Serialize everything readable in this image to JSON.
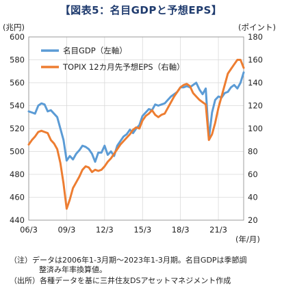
{
  "title": "【図表5：名目GDPと予想EPS】",
  "chart_data": {
    "type": "line",
    "left_unit": "(兆円)",
    "right_unit": "(ポイント)",
    "x_unit": "(年/月)",
    "x_ticks": [
      "06/3",
      "09/3",
      "12/3",
      "15/3",
      "18/3",
      "21/3"
    ],
    "x_tick_values": [
      2006.0,
      2009.0,
      2012.0,
      2015.0,
      2018.0,
      2021.0
    ],
    "xlim": [
      2006.0,
      2023.0
    ],
    "left_axis": {
      "min": 440,
      "max": 600,
      "ticks": [
        440,
        460,
        480,
        500,
        520,
        540,
        560,
        580,
        600
      ]
    },
    "right_axis": {
      "min": 20,
      "max": 180,
      "ticks": [
        20,
        40,
        60,
        80,
        100,
        120,
        140,
        160,
        180
      ]
    },
    "grid": true,
    "legend_position": "top-left",
    "series": [
      {
        "name": "名目GDP（左軸）",
        "axis": "left",
        "color": "#5b9bd5",
        "x": [
          2006.0,
          2006.25,
          2006.5,
          2006.75,
          2007.0,
          2007.25,
          2007.5,
          2007.75,
          2008.0,
          2008.25,
          2008.5,
          2008.75,
          2009.0,
          2009.25,
          2009.5,
          2009.75,
          2010.0,
          2010.25,
          2010.5,
          2010.75,
          2011.0,
          2011.25,
          2011.5,
          2011.75,
          2012.0,
          2012.25,
          2012.5,
          2012.75,
          2013.0,
          2013.25,
          2013.5,
          2013.75,
          2014.0,
          2014.25,
          2014.5,
          2014.75,
          2015.0,
          2015.25,
          2015.5,
          2015.75,
          2016.0,
          2016.25,
          2016.5,
          2016.75,
          2017.0,
          2017.25,
          2017.5,
          2017.75,
          2018.0,
          2018.25,
          2018.5,
          2018.75,
          2019.0,
          2019.25,
          2019.5,
          2019.75,
          2020.0,
          2020.25,
          2020.5,
          2020.75,
          2021.0,
          2021.25,
          2021.5,
          2021.75,
          2022.0,
          2022.25,
          2022.5,
          2022.75,
          2023.0
        ],
        "values": [
          535,
          534,
          533,
          540,
          542,
          541,
          535,
          536,
          533,
          530,
          520,
          510,
          492,
          496,
          493,
          498,
          501,
          505,
          504,
          502,
          498,
          491,
          499,
          499,
          505,
          497,
          500,
          496,
          505,
          509,
          513,
          515,
          519,
          516,
          520,
          523,
          531,
          534,
          537,
          536,
          541,
          540,
          541,
          542,
          545,
          548,
          550,
          552,
          556,
          556,
          557,
          556,
          558,
          560,
          554,
          550,
          555,
          511,
          534,
          545,
          548,
          547,
          551,
          552,
          556,
          558,
          555,
          560,
          569
        ]
      },
      {
        "name": "TOPIX 12カ月先予想EPS（右軸）",
        "axis": "right",
        "color": "#ed7d31",
        "x": [
          2006.0,
          2006.25,
          2006.5,
          2006.75,
          2007.0,
          2007.25,
          2007.5,
          2007.75,
          2008.0,
          2008.25,
          2008.5,
          2008.75,
          2009.0,
          2009.25,
          2009.5,
          2009.75,
          2010.0,
          2010.25,
          2010.5,
          2010.75,
          2011.0,
          2011.25,
          2011.5,
          2011.75,
          2012.0,
          2012.25,
          2012.5,
          2012.75,
          2013.0,
          2013.25,
          2013.5,
          2013.75,
          2014.0,
          2014.25,
          2014.5,
          2014.75,
          2015.0,
          2015.25,
          2015.5,
          2015.75,
          2016.0,
          2016.25,
          2016.5,
          2016.75,
          2017.0,
          2017.25,
          2017.5,
          2017.75,
          2018.0,
          2018.25,
          2018.5,
          2018.75,
          2019.0,
          2019.25,
          2019.5,
          2019.75,
          2020.0,
          2020.25,
          2020.5,
          2020.75,
          2021.0,
          2021.25,
          2021.5,
          2021.75,
          2022.0,
          2022.25,
          2022.5,
          2022.75,
          2023.0
        ],
        "values": [
          86,
          90,
          93,
          97,
          98,
          97,
          96,
          90,
          87,
          82,
          70,
          52,
          30,
          38,
          48,
          53,
          58,
          64,
          67,
          66,
          62,
          64,
          63,
          64,
          67,
          71,
          74,
          78,
          82,
          86,
          89,
          92,
          95,
          99,
          101,
          100,
          107,
          111,
          113,
          116,
          112,
          110,
          112,
          113,
          118,
          123,
          128,
          132,
          136,
          138,
          139,
          137,
          131,
          128,
          125,
          123,
          121,
          90,
          95,
          105,
          118,
          128,
          138,
          148,
          152,
          156,
          160,
          160,
          153
        ]
      }
    ]
  },
  "notes": {
    "line1": "（注）データは2006年1-3月期～2023年1-3月期。名目GDPは季節調",
    "line2": "整済み年率換算値。",
    "line3": "（出所）各種データを基に三井住友DSアセットマネジメント作成"
  }
}
